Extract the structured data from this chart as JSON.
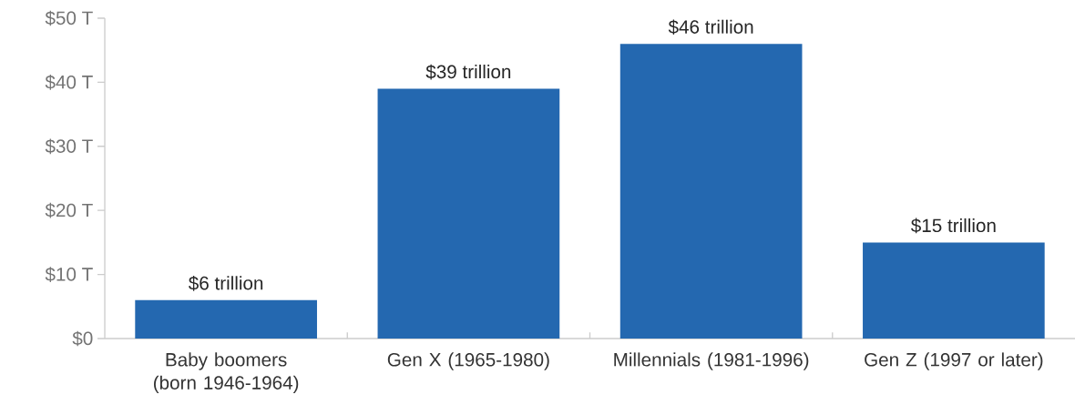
{
  "chart_data": {
    "type": "bar",
    "categories": [
      "Baby boomers (born 1946-1964)",
      "Gen X (1965-1980)",
      "Millennials (1981-1996)",
      "Gen Z (1997 or later)"
    ],
    "values": [
      6,
      39,
      46,
      15
    ],
    "value_labels": [
      "$6 trillion",
      "$39 trillion",
      "$46 trillion",
      "$15 trillion"
    ],
    "color": "#2468b0",
    "ylim": [
      0,
      50
    ],
    "yticks": [
      {
        "value": 0,
        "label": "$0"
      },
      {
        "value": 10,
        "label": "$10 T"
      },
      {
        "value": 20,
        "label": "$20 T"
      },
      {
        "value": 30,
        "label": "$30 T"
      },
      {
        "value": 40,
        "label": "$40 T"
      },
      {
        "value": 50,
        "label": "$50 T"
      }
    ],
    "grid": false
  }
}
